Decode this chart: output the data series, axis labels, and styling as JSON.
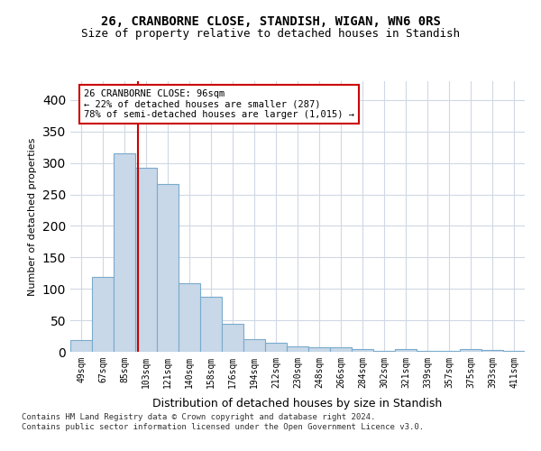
{
  "title": "26, CRANBORNE CLOSE, STANDISH, WIGAN, WN6 0RS",
  "subtitle": "Size of property relative to detached houses in Standish",
  "xlabel": "Distribution of detached houses by size in Standish",
  "ylabel": "Number of detached properties",
  "bar_labels": [
    "49sqm",
    "67sqm",
    "85sqm",
    "103sqm",
    "121sqm",
    "140sqm",
    "158sqm",
    "176sqm",
    "194sqm",
    "212sqm",
    "230sqm",
    "248sqm",
    "266sqm",
    "284sqm",
    "302sqm",
    "321sqm",
    "339sqm",
    "357sqm",
    "375sqm",
    "393sqm",
    "411sqm"
  ],
  "bar_values": [
    18,
    119,
    315,
    293,
    266,
    109,
    88,
    44,
    20,
    15,
    8,
    7,
    7,
    5,
    2,
    4,
    2,
    2,
    5,
    3,
    2
  ],
  "bar_color": "#c8d8e8",
  "bar_edge_color": "#7aaacc",
  "vline_color": "#cc0000",
  "annotation_line1": "26 CRANBORNE CLOSE: 96sqm",
  "annotation_line2": "← 22% of detached houses are smaller (287)",
  "annotation_line3": "78% of semi-detached houses are larger (1,015) →",
  "annotation_box_color": "#ffffff",
  "annotation_box_edge": "#cc0000",
  "footer_text": "Contains HM Land Registry data © Crown copyright and database right 2024.\nContains public sector information licensed under the Open Government Licence v3.0.",
  "ylim": [
    0,
    430
  ],
  "yticks": [
    0,
    50,
    100,
    150,
    200,
    250,
    300,
    350,
    400
  ],
  "background_color": "#ffffff",
  "grid_color": "#d0d8e4",
  "vline_position": 2.61
}
